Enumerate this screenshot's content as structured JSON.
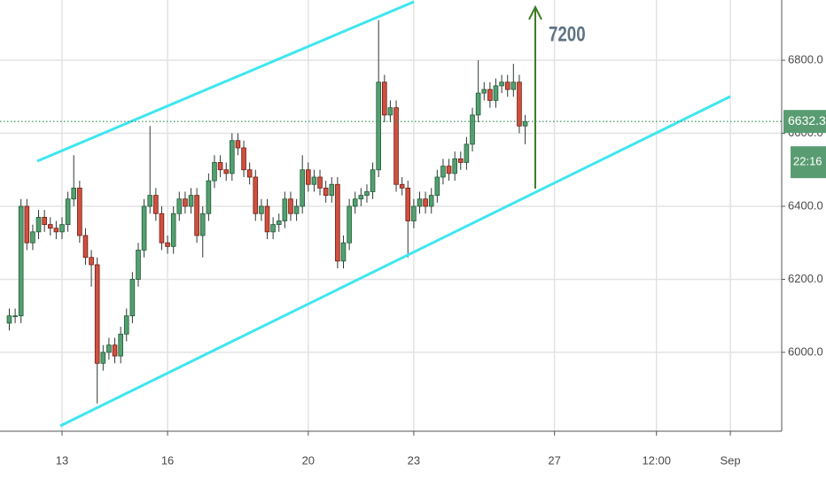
{
  "chart_data": {
    "type": "candlestick",
    "x": [
      11.5,
      11.667,
      11.833,
      12,
      12.167,
      12.333,
      12.5,
      12.667,
      12.833,
      13,
      13.167,
      13.333,
      13.5,
      13.667,
      13.833,
      14,
      14.167,
      14.333,
      14.5,
      14.667,
      14.833,
      15,
      15.167,
      15.333,
      15.5,
      15.667,
      15.833,
      16,
      16.167,
      16.333,
      16.5,
      16.667,
      16.833,
      17,
      17.167,
      17.333,
      17.5,
      17.667,
      17.833,
      18,
      18.167,
      18.333,
      18.5,
      18.667,
      18.833,
      19,
      19.167,
      19.333,
      19.5,
      19.667,
      19.833,
      20,
      20.167,
      20.333,
      20.5,
      20.667,
      20.833,
      21,
      21.167,
      21.333,
      21.5,
      21.667,
      21.833,
      22,
      22.167,
      22.333,
      22.5,
      22.667,
      22.833,
      23,
      23.167,
      23.333,
      23.5,
      23.667,
      23.833,
      24,
      24.167,
      24.333,
      24.5,
      24.667,
      24.833,
      25,
      25.167,
      25.333,
      25.5,
      25.667,
      25.833,
      26,
      26.167
    ],
    "open": [
      6080,
      6100,
      6100,
      6400,
      6300,
      6330,
      6370,
      6350,
      6340,
      6330,
      6350,
      6420,
      6450,
      6320,
      6260,
      6240,
      5970,
      6000,
      6020,
      5990,
      6050,
      6100,
      6200,
      6280,
      6400,
      6430,
      6380,
      6300,
      6290,
      6380,
      6420,
      6400,
      6430,
      6320,
      6380,
      6470,
      6520,
      6500,
      6490,
      6580,
      6560,
      6500,
      6480,
      6380,
      6400,
      6330,
      6350,
      6360,
      6420,
      6380,
      6400,
      6500,
      6460,
      6480,
      6450,
      6430,
      6460,
      6250,
      6300,
      6400,
      6420,
      6430,
      6440,
      6500,
      6740,
      6650,
      6670,
      6460,
      6450,
      6360,
      6400,
      6420,
      6400,
      6430,
      6480,
      6510,
      6490,
      6530,
      6520,
      6570,
      6650,
      6710,
      6720,
      6690,
      6730,
      6740,
      6720,
      6740,
      6620
    ],
    "high": [
      6120,
      6120,
      6420,
      6420,
      6350,
      6390,
      6390,
      6370,
      6360,
      6370,
      6440,
      6540,
      6470,
      6340,
      6280,
      6260,
      6020,
      6040,
      6040,
      6070,
      6120,
      6220,
      6300,
      6420,
      6620,
      6450,
      6400,
      6320,
      6400,
      6440,
      6440,
      6450,
      6450,
      6400,
      6490,
      6540,
      6540,
      6520,
      6600,
      6600,
      6580,
      6520,
      6500,
      6420,
      6420,
      6370,
      6380,
      6440,
      6440,
      6420,
      6540,
      6520,
      6500,
      6500,
      6470,
      6480,
      6480,
      6320,
      6420,
      6440,
      6450,
      6460,
      6520,
      6910,
      6760,
      6690,
      6690,
      6480,
      6470,
      6420,
      6440,
      6440,
      6450,
      6500,
      6530,
      6530,
      6550,
      6550,
      6590,
      6670,
      6800,
      6740,
      6740,
      6750,
      6760,
      6760,
      6790,
      6760,
      6650
    ],
    "low": [
      6060,
      6080,
      6080,
      6280,
      6280,
      6310,
      6330,
      6320,
      6310,
      6310,
      6330,
      6400,
      6300,
      6240,
      6180,
      5860,
      5950,
      5980,
      5970,
      5970,
      6030,
      6080,
      6180,
      6260,
      6380,
      6360,
      6280,
      6270,
      6270,
      6360,
      6380,
      6380,
      6300,
      6260,
      6360,
      6450,
      6480,
      6470,
      6470,
      6540,
      6480,
      6460,
      6360,
      6360,
      6310,
      6310,
      6330,
      6340,
      6360,
      6360,
      6380,
      6440,
      6440,
      6430,
      6410,
      6410,
      6230,
      6230,
      6280,
      6380,
      6400,
      6410,
      6420,
      6480,
      6630,
      6630,
      6440,
      6430,
      6260,
      6340,
      6380,
      6380,
      6380,
      6410,
      6460,
      6470,
      6470,
      6500,
      6500,
      6550,
      6630,
      6690,
      6670,
      6670,
      6710,
      6700,
      6700,
      6600,
      6570
    ],
    "close": [
      6100,
      6100,
      6400,
      6300,
      6330,
      6370,
      6350,
      6340,
      6330,
      6350,
      6420,
      6450,
      6320,
      6260,
      6240,
      5970,
      6000,
      6020,
      5990,
      6050,
      6100,
      6200,
      6280,
      6400,
      6430,
      6380,
      6300,
      6290,
      6380,
      6420,
      6400,
      6430,
      6320,
      6380,
      6470,
      6520,
      6500,
      6490,
      6580,
      6560,
      6500,
      6480,
      6380,
      6400,
      6330,
      6350,
      6360,
      6420,
      6380,
      6400,
      6500,
      6460,
      6480,
      6450,
      6430,
      6460,
      6250,
      6300,
      6400,
      6420,
      6430,
      6440,
      6500,
      6740,
      6650,
      6670,
      6460,
      6450,
      6360,
      6400,
      6420,
      6400,
      6430,
      6480,
      6510,
      6490,
      6530,
      6520,
      6570,
      6650,
      6710,
      6720,
      6690,
      6730,
      6740,
      6720,
      6740,
      6620,
      6632.3
    ],
    "up_color": "#53a070",
    "down_color": "#d0503f",
    "xlim": [
      11.236,
      33.46
    ],
    "ylim": [
      5784,
      6965
    ],
    "xticks": [
      13,
      16,
      20,
      23,
      27,
      {
        "value": 29.9,
        "label": "12:00"
      },
      {
        "value": 32,
        "label": "Sep"
      }
    ],
    "yticks": [
      {
        "value": 6000,
        "label": "6000.0"
      },
      {
        "value": 6200,
        "label": "6200.0"
      },
      {
        "value": 6400,
        "label": "6400.0"
      },
      {
        "value": 6600,
        "label": "6600.0"
      },
      {
        "value": 6800,
        "label": "6800.0"
      }
    ],
    "grid": true,
    "last_price": 6632.3,
    "countdown": "22:16",
    "annotation": "7200"
  }
}
